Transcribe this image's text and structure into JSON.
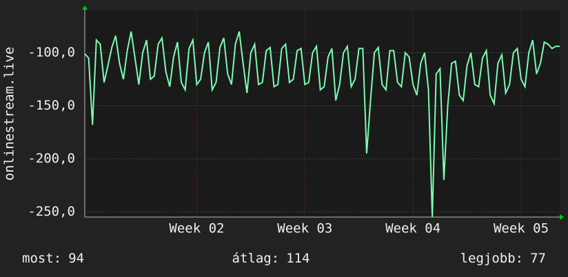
{
  "chart_data": {
    "type": "line",
    "y_label": "onlinestream.live",
    "series": [
      {
        "name": "onlinestream.live",
        "color": "#7dfcb0",
        "values": [
          -101,
          -105,
          -168,
          -88,
          -92,
          -128,
          -112,
          -95,
          -84,
          -110,
          -125,
          -98,
          -80,
          -105,
          -130,
          -100,
          -88,
          -125,
          -122,
          -92,
          -86,
          -118,
          -132,
          -104,
          -90,
          -128,
          -135,
          -96,
          -88,
          -130,
          -125,
          -100,
          -90,
          -135,
          -128,
          -95,
          -86,
          -120,
          -130,
          -92,
          -80,
          -110,
          -138,
          -100,
          -92,
          -130,
          -128,
          -98,
          -95,
          -132,
          -130,
          -96,
          -92,
          -128,
          -125,
          -98,
          -96,
          -130,
          -128,
          -100,
          -94,
          -135,
          -132,
          -104,
          -96,
          -145,
          -130,
          -100,
          -94,
          -132,
          -125,
          -96,
          -96,
          -195,
          -145,
          -100,
          -95,
          -130,
          -135,
          -98,
          -98,
          -128,
          -132,
          -100,
          -104,
          -130,
          -140,
          -110,
          -100,
          -135,
          -255,
          -120,
          -115,
          -220,
          -150,
          -110,
          -108,
          -140,
          -145,
          -112,
          -100,
          -130,
          -132,
          -105,
          -98,
          -140,
          -148,
          -110,
          -102,
          -138,
          -130,
          -100,
          -96,
          -125,
          -132,
          -100,
          -88,
          -120,
          -110,
          -90,
          -92,
          -96,
          -94,
          -94
        ]
      }
    ],
    "xlim": [
      0,
      123
    ],
    "xticks": [
      {
        "value": 29,
        "label": "Week 02"
      },
      {
        "value": 57,
        "label": "Week 03"
      },
      {
        "value": 85,
        "label": "Week 04"
      },
      {
        "value": 113,
        "label": "Week 05"
      }
    ],
    "ylim": [
      -255,
      -60
    ],
    "yticks": [
      {
        "value": -100,
        "label": "-100,0"
      },
      {
        "value": -150,
        "label": "-150,0"
      },
      {
        "value": -200,
        "label": "-200,0"
      },
      {
        "value": -250,
        "label": "-250,0"
      }
    ],
    "grid": true,
    "stats": [
      {
        "label": "most:",
        "value": 94
      },
      {
        "label": "átlag:",
        "value": 114
      },
      {
        "label": "legjobb:",
        "value": 77
      }
    ]
  }
}
